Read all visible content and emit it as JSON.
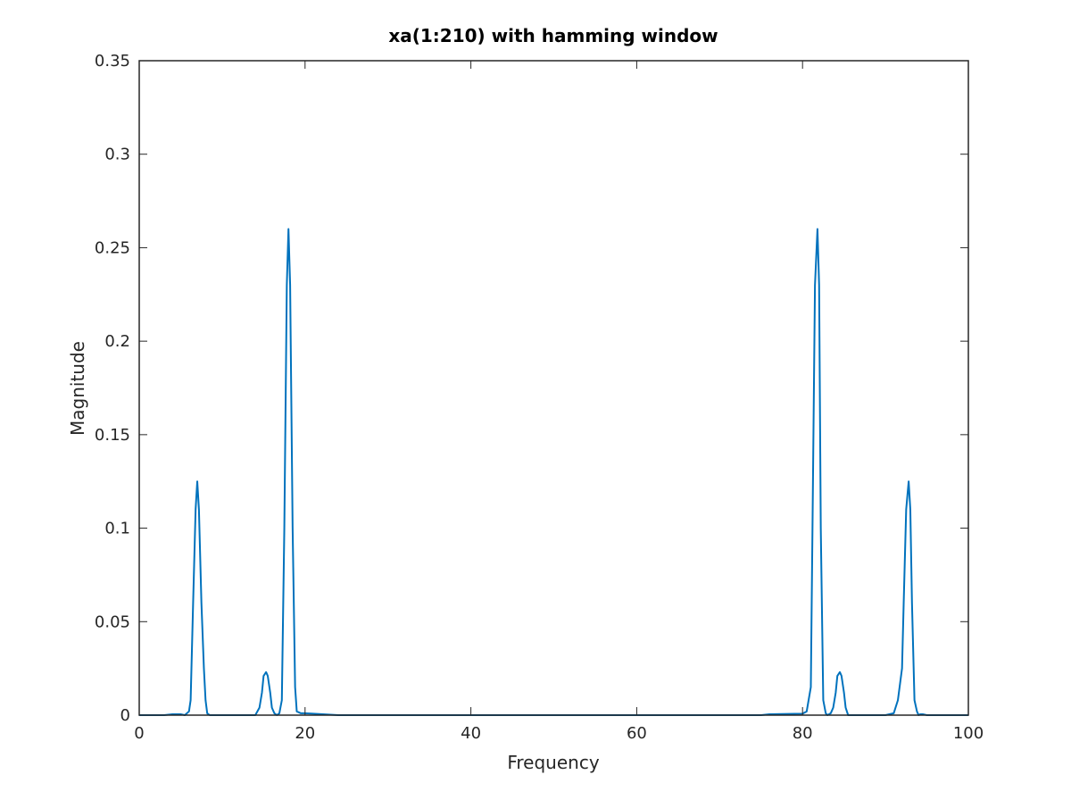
{
  "chart_data": {
    "type": "line",
    "title": "xa(1:210) with hamming window",
    "xlabel": "Frequency",
    "ylabel": "Magnitude",
    "xlim": [
      0,
      100
    ],
    "ylim": [
      0,
      0.35
    ],
    "xticks": [
      0,
      20,
      40,
      60,
      80,
      100
    ],
    "xtick_labels": [
      "0",
      "20",
      "40",
      "60",
      "80",
      "100"
    ],
    "yticks": [
      0,
      0.05,
      0.1,
      0.15,
      0.2,
      0.25,
      0.3,
      0.35
    ],
    "ytick_labels": [
      "0",
      "0.05",
      "0.1",
      "0.15",
      "0.2",
      "0.25",
      "0.3",
      "0.35"
    ],
    "grid": false,
    "box": true,
    "line_color": "#0072BD",
    "series": [
      {
        "x": [
          0,
          3,
          4,
          5,
          5.5,
          6,
          6.2,
          6.5,
          6.8,
          7,
          7.2,
          7.5,
          7.8,
          8,
          8.2,
          8.5,
          9,
          10,
          12,
          14,
          14.5,
          14.8,
          15,
          15.3,
          15.5,
          15.8,
          16,
          16.3,
          16.6,
          16.9,
          17.2,
          17.5,
          17.8,
          18,
          18.2,
          18.5,
          18.8,
          19,
          19.5,
          20,
          21,
          24,
          25,
          30,
          40,
          50,
          60,
          70,
          75,
          76,
          80,
          80.5,
          81,
          81.2,
          81.5,
          81.8,
          82,
          82.2,
          82.5,
          82.8,
          83,
          83.4,
          83.7,
          84,
          84.2,
          84.5,
          84.7,
          85,
          85.2,
          85.5,
          85.8,
          86,
          86.5,
          88,
          90,
          91,
          91.5,
          92,
          92.2,
          92.5,
          92.8,
          93,
          93.2,
          93.5,
          93.8,
          94,
          94.2,
          94.5,
          95,
          96,
          100
        ],
        "y": [
          0,
          0,
          0.0005,
          0.0005,
          0,
          0.002,
          0.008,
          0.06,
          0.11,
          0.125,
          0.11,
          0.06,
          0.025,
          0.008,
          0.001,
          0,
          0,
          0,
          0,
          0,
          0.004,
          0.012,
          0.021,
          0.023,
          0.021,
          0.012,
          0.004,
          0.001,
          0,
          0.001,
          0.008,
          0.1,
          0.23,
          0.26,
          0.23,
          0.1,
          0.015,
          0.002,
          0.001,
          0.001,
          0.0008,
          0,
          0,
          0,
          0,
          0,
          0,
          0,
          0,
          0.0005,
          0.0008,
          0.002,
          0.015,
          0.1,
          0.23,
          0.26,
          0.23,
          0.1,
          0.008,
          0.001,
          0,
          0.001,
          0.004,
          0.012,
          0.021,
          0.023,
          0.021,
          0.012,
          0.004,
          0,
          0,
          0,
          0,
          0,
          0,
          0.001,
          0.008,
          0.025,
          0.06,
          0.11,
          0.125,
          0.11,
          0.06,
          0.008,
          0.002,
          0,
          0.0005,
          0.0005,
          0,
          0,
          0
        ]
      }
    ]
  }
}
